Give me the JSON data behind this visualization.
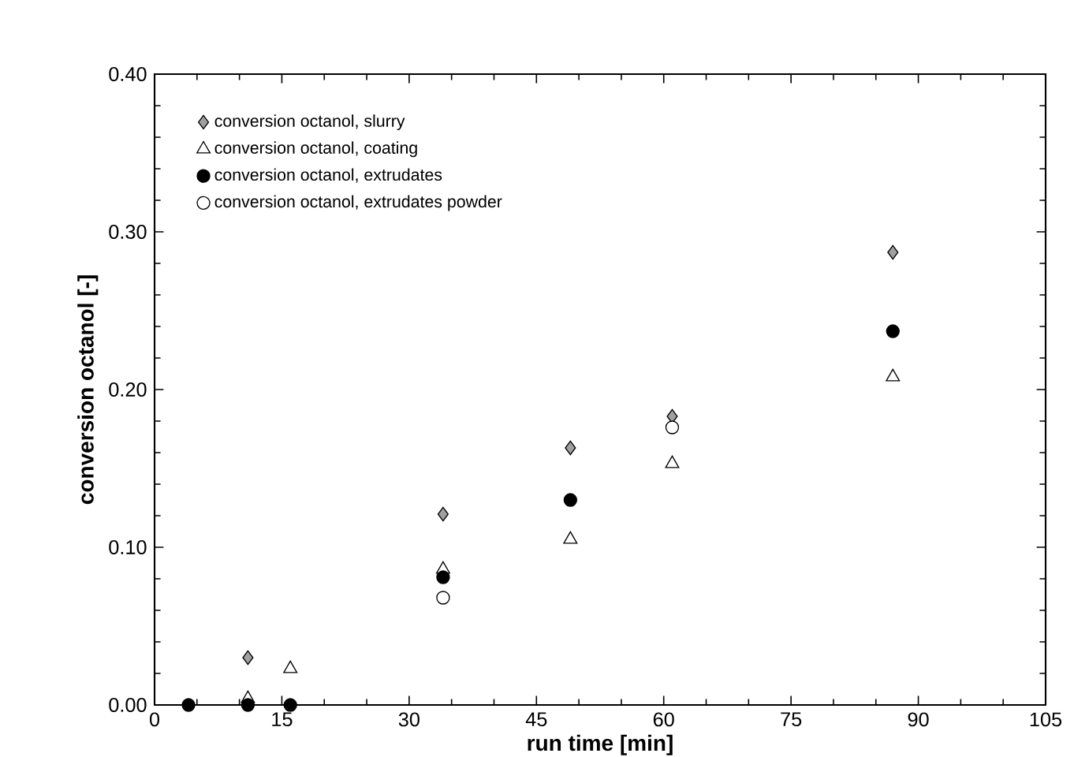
{
  "chart_data": {
    "type": "scatter",
    "xlabel": "run time [min]",
    "ylabel": "conversion octanol [-]",
    "xlim": [
      0,
      105
    ],
    "xticks": [
      0,
      15,
      30,
      45,
      60,
      75,
      90,
      105
    ],
    "ylim": [
      0,
      0.4
    ],
    "yticks": [
      {
        "value": 0,
        "label": "0.00"
      },
      {
        "value": 0.1,
        "label": "0.10"
      },
      {
        "value": 0.2,
        "label": "0.20"
      },
      {
        "value": 0.3,
        "label": "0.30"
      },
      {
        "value": 0.4,
        "label": "0.40"
      }
    ],
    "grid": false,
    "legend": "top left",
    "series": [
      {
        "name": "conversion octanol, slurry",
        "color": "#a0a0a0",
        "marker": "diamond",
        "x": [
          11,
          34,
          49,
          61,
          87
        ],
        "values": [
          0.03,
          0.121,
          0.163,
          0.183,
          0.287
        ]
      },
      {
        "name": "conversion octanol, coating",
        "color": "#ffffff",
        "marker": "triangle",
        "x": [
          11,
          16,
          34,
          49,
          61,
          87
        ],
        "values": [
          0.004,
          0.023,
          0.086,
          0.105,
          0.153,
          0.208
        ]
      },
      {
        "name": "conversion octanol, extrudates",
        "color": "#000000",
        "marker": "circle",
        "x": [
          4,
          11,
          16,
          34,
          49,
          87
        ],
        "values": [
          0,
          0,
          0,
          0.081,
          0.13,
          0.237
        ]
      },
      {
        "name": "conversion octanol, extrudates powder",
        "color": "#ffffff",
        "marker": "circle",
        "x": [
          34,
          61
        ],
        "values": [
          0.068,
          0.176
        ]
      }
    ]
  }
}
